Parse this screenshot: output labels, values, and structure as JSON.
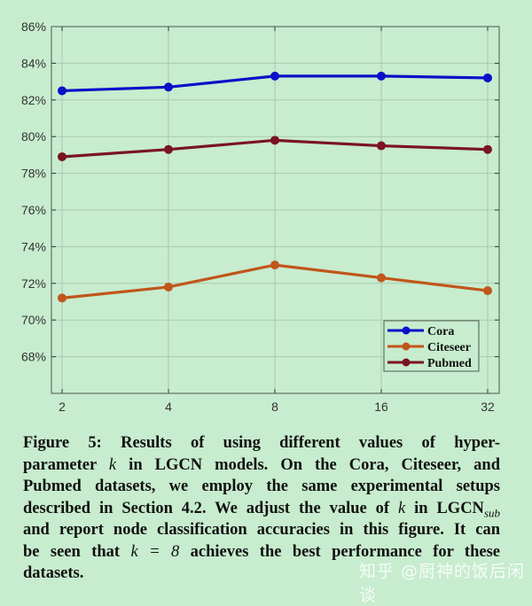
{
  "chart_data": {
    "type": "line",
    "categories": [
      "2",
      "4",
      "8",
      "16",
      "32"
    ],
    "ylim": [
      66,
      86
    ],
    "yticks": [
      "68%",
      "70%",
      "72%",
      "74%",
      "76%",
      "78%",
      "80%",
      "82%",
      "84%",
      "86%"
    ],
    "ytick_values": [
      68,
      70,
      72,
      74,
      76,
      78,
      80,
      82,
      84,
      86
    ],
    "grid": true,
    "legend_position": "bottom-right",
    "series": [
      {
        "name": "Cora",
        "color": "#0a10c8",
        "values": [
          82.5,
          82.7,
          83.3,
          83.3,
          83.2
        ]
      },
      {
        "name": "Citeseer",
        "color": "#c0561a",
        "values": [
          71.2,
          71.8,
          73.0,
          72.3,
          71.6
        ]
      },
      {
        "name": "Pubmed",
        "color": "#7a1420",
        "values": [
          78.9,
          79.3,
          79.8,
          79.5,
          79.3
        ]
      }
    ]
  },
  "caption": {
    "lines": [
      [
        {
          "t": "Figure 5: Results of using different values of hyper-"
        }
      ],
      [
        {
          "t": "parameter "
        },
        {
          "t": "k",
          "style": "i"
        },
        {
          "t": " in LGCN models. On the Cora, Citeseer, and"
        }
      ],
      [
        {
          "t": "Pubmed datasets, we employ the same experimental setups"
        }
      ],
      [
        {
          "t": "described in Section 4.2. We adjust the value of "
        },
        {
          "t": "k",
          "style": "i"
        },
        {
          "t": " in LGCN"
        },
        {
          "t": "sub",
          "style": "sub"
        }
      ],
      [
        {
          "t": "and report node classification accuracies in this figure. It can"
        }
      ],
      [
        {
          "t": "be seen that "
        },
        {
          "t": "k = 8",
          "style": "i"
        },
        {
          "t": " achieves the best performance for these"
        }
      ],
      [
        {
          "t": "datasets."
        }
      ]
    ]
  },
  "watermark": "知乎 @厨神的饭后闲谈"
}
